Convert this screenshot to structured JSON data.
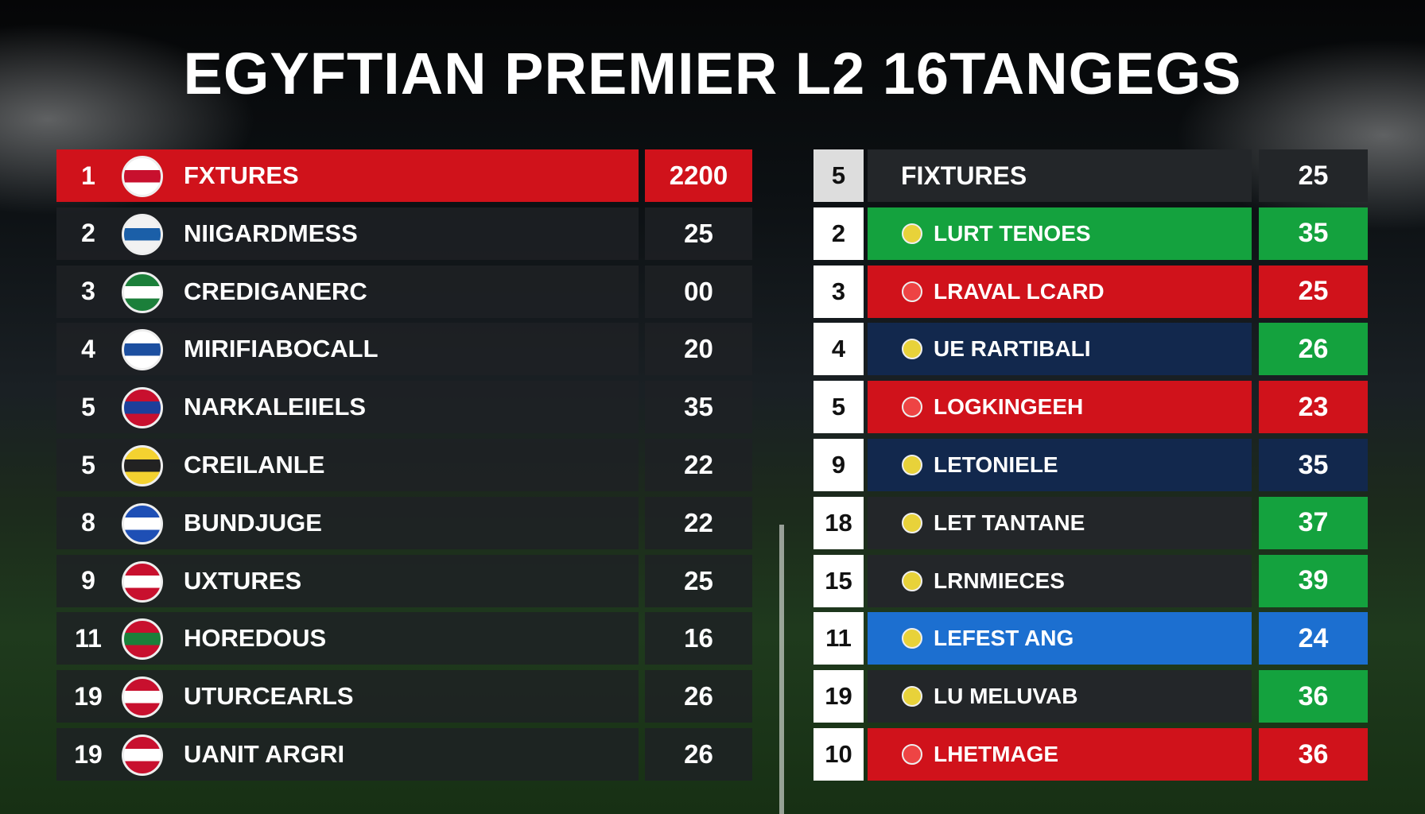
{
  "title": "EGYFTIAN PREMIER L2 16TANGEGS",
  "left_table": {
    "rows": [
      {
        "rank": 1,
        "team": "FXTURES",
        "points": "2200"
      },
      {
        "rank": 2,
        "team": "NIIGARDMESS",
        "points": "25"
      },
      {
        "rank": 3,
        "team": "CREDIGANERC",
        "points": "00"
      },
      {
        "rank": 4,
        "team": "MIRIFIABOCALL",
        "points": "20"
      },
      {
        "rank": 5,
        "team": "NARKALEIIELS",
        "points": "35"
      },
      {
        "rank": 5,
        "team": "CREILANLE",
        "points": "22"
      },
      {
        "rank": 8,
        "team": "BUNDJUGE",
        "points": "22"
      },
      {
        "rank": 9,
        "team": "UXTURES",
        "points": "25"
      },
      {
        "rank": 11,
        "team": "HOREDOUS",
        "points": "16"
      },
      {
        "rank": 19,
        "team": "UTURCEARLS",
        "points": "26"
      },
      {
        "rank": 19,
        "team": "UANIT ARGRI",
        "points": "26"
      }
    ]
  },
  "right_table": {
    "rows": [
      {
        "rank": 5,
        "team": "FIXTURES",
        "points": "25"
      },
      {
        "rank": 2,
        "team": "LURT TENOES",
        "points": "35"
      },
      {
        "rank": 3,
        "team": "LRAVAL LCARD",
        "points": "25"
      },
      {
        "rank": 4,
        "team": "UE RARTIBALI",
        "points": "26"
      },
      {
        "rank": 5,
        "team": "LOGKINGEEH",
        "points": "23"
      },
      {
        "rank": 9,
        "team": "LETONIELE",
        "points": "35"
      },
      {
        "rank": 18,
        "team": "LET TANTANE",
        "points": "37"
      },
      {
        "rank": 15,
        "team": "LRNMIECES",
        "points": "39"
      },
      {
        "rank": 11,
        "team": "LEFEST ANG",
        "points": "24"
      },
      {
        "rank": 19,
        "team": "LU MELUVAB",
        "points": "36"
      },
      {
        "rank": 10,
        "team": "LHETMAGE",
        "points": "36"
      }
    ]
  }
}
